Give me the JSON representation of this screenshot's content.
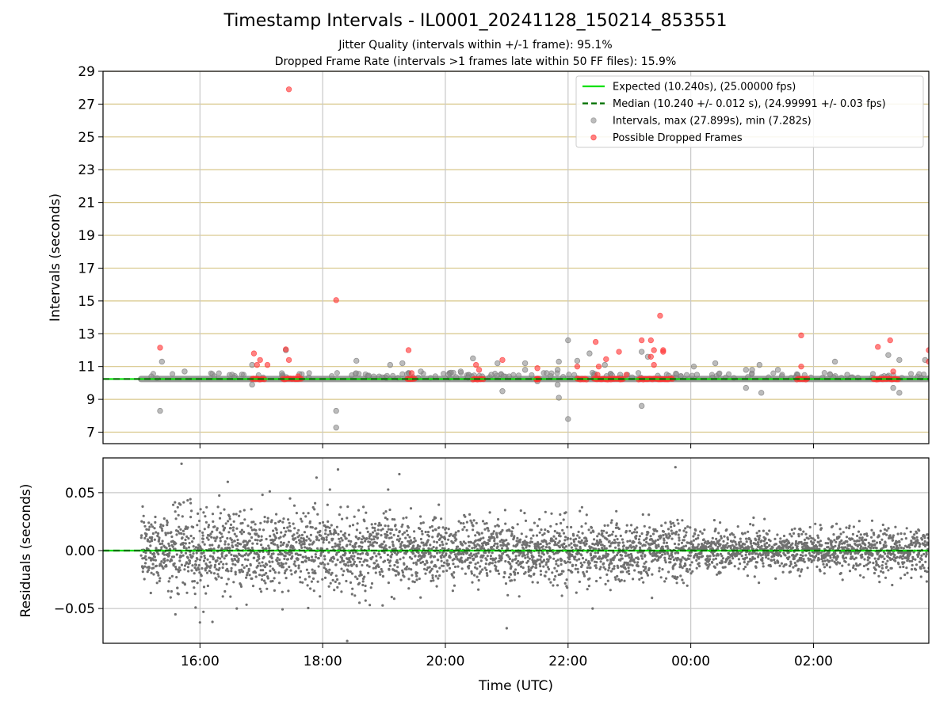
{
  "title": "Timestamp Intervals - IL0001_20241128_150214_853551",
  "subtitle_1": "Jitter Quality (intervals within +/-1 frame): 95.1%",
  "subtitle_2": "Dropped Frame Rate (intervals >1 frames late within 50 FF files): 15.9%",
  "colors": {
    "expected": "#00e000",
    "median": "#007000",
    "intervals": "#909090",
    "dropped": "#ff3030",
    "residuals": "#707070",
    "upper_grid": "#d8c78a",
    "grid": "#c8c8c8"
  },
  "chart_data": [
    {
      "type": "scatter",
      "panel": "intervals",
      "ylabel": "Intervals (seconds)",
      "ylim": [
        6.3,
        29
      ],
      "yticks": [
        7,
        9,
        11,
        13,
        15,
        17,
        19,
        21,
        23,
        25,
        27,
        29
      ],
      "xlim": [
        14.42,
        27.88
      ],
      "xticks": [
        16,
        18,
        20,
        22,
        24,
        26
      ],
      "xtick_labels": [
        "16:00",
        "18:00",
        "20:00",
        "22:00",
        "00:00",
        "02:00"
      ],
      "x_unit": "hours UTC (values above 24 are after midnight)",
      "x_range": [
        15.04,
        27.88
      ],
      "grid": true,
      "legend": {
        "position": "top-right",
        "entries": [
          {
            "label": "Expected (10.240s), (25.00000 fps)",
            "style": "solid-line",
            "color_key": "expected"
          },
          {
            "label": "Median (10.240 +/- 0.012 s), (24.99991 +/- 0.03 fps)",
            "style": "dashed-line",
            "color_key": "median"
          },
          {
            "label": "Intervals, max (27.899s), min (7.282s)",
            "style": "marker",
            "color_key": "intervals"
          },
          {
            "label": "Possible Dropped Frames",
            "style": "marker",
            "color_key": "dropped"
          }
        ]
      },
      "expected_value": 10.24,
      "median_value": 10.24,
      "intervals_points": [
        [
          15.35,
          8.3
        ],
        [
          15.38,
          11.3
        ],
        [
          15.75,
          10.7
        ],
        [
          16.85,
          9.9
        ],
        [
          16.85,
          11.1
        ],
        [
          17.4,
          12.0
        ],
        [
          18.22,
          8.3
        ],
        [
          18.22,
          7.28
        ],
        [
          18.55,
          11.35
        ],
        [
          18.75,
          10.45
        ],
        [
          19.1,
          11.1
        ],
        [
          19.3,
          11.2
        ],
        [
          19.6,
          10.7
        ],
        [
          20.05,
          10.5
        ],
        [
          20.25,
          10.7
        ],
        [
          20.45,
          11.5
        ],
        [
          20.6,
          10.4
        ],
        [
          20.75,
          10.5
        ],
        [
          20.85,
          11.2
        ],
        [
          20.93,
          9.5
        ],
        [
          21.3,
          11.2
        ],
        [
          21.3,
          10.8
        ],
        [
          21.5,
          10.1
        ],
        [
          21.65,
          10.6
        ],
        [
          21.83,
          9.9
        ],
        [
          21.83,
          10.8
        ],
        [
          21.85,
          11.3
        ],
        [
          21.85,
          9.1
        ],
        [
          22.0,
          12.6
        ],
        [
          22.0,
          7.8
        ],
        [
          22.15,
          11.35
        ],
        [
          22.35,
          11.8
        ],
        [
          22.6,
          11.1
        ],
        [
          22.85,
          10.5
        ],
        [
          23.2,
          11.9
        ],
        [
          23.2,
          8.6
        ],
        [
          23.3,
          11.6
        ],
        [
          24.05,
          11.0
        ],
        [
          24.1,
          10.5
        ],
        [
          24.4,
          11.2
        ],
        [
          24.9,
          10.8
        ],
        [
          24.9,
          9.7
        ],
        [
          25.0,
          10.8
        ],
        [
          25.12,
          11.1
        ],
        [
          25.15,
          9.4
        ],
        [
          25.42,
          10.8
        ],
        [
          26.35,
          11.3
        ],
        [
          26.55,
          10.5
        ],
        [
          27.22,
          11.7
        ],
        [
          27.3,
          9.7
        ],
        [
          27.4,
          9.4
        ],
        [
          27.4,
          11.4
        ],
        [
          27.82,
          11.4
        ]
      ],
      "dropped_points": [
        [
          15.35,
          12.15
        ],
        [
          16.88,
          11.8
        ],
        [
          16.93,
          11.1
        ],
        [
          16.98,
          11.4
        ],
        [
          17.1,
          11.1
        ],
        [
          17.4,
          12.05
        ],
        [
          17.45,
          11.4
        ],
        [
          17.45,
          27.899
        ],
        [
          17.6,
          10.4
        ],
        [
          18.22,
          15.05
        ],
        [
          19.4,
          12.0
        ],
        [
          19.45,
          10.6
        ],
        [
          20.5,
          11.1
        ],
        [
          20.55,
          10.8
        ],
        [
          20.93,
          11.4
        ],
        [
          21.5,
          10.9
        ],
        [
          22.15,
          11.0
        ],
        [
          22.45,
          12.5
        ],
        [
          22.48,
          10.5
        ],
        [
          22.5,
          11.0
        ],
        [
          22.62,
          11.45
        ],
        [
          22.83,
          11.9
        ],
        [
          22.95,
          10.5
        ],
        [
          23.2,
          12.6
        ],
        [
          23.35,
          12.6
        ],
        [
          23.35,
          11.6
        ],
        [
          23.4,
          12.0
        ],
        [
          23.4,
          11.1
        ],
        [
          23.5,
          14.1
        ],
        [
          23.55,
          12.0
        ],
        [
          23.55,
          11.9
        ],
        [
          25.8,
          12.9
        ],
        [
          25.8,
          11.0
        ],
        [
          27.05,
          12.2
        ],
        [
          27.25,
          12.6
        ],
        [
          27.3,
          10.7
        ],
        [
          27.88,
          12.0
        ],
        [
          27.88,
          11.3
        ]
      ],
      "dropped_base_runs": [
        [
          16.85,
          17.05
        ],
        [
          17.35,
          17.65
        ],
        [
          19.38,
          19.5
        ],
        [
          20.45,
          20.62
        ],
        [
          21.48,
          21.52
        ],
        [
          22.15,
          22.3
        ],
        [
          22.42,
          22.9
        ],
        [
          23.15,
          23.7
        ],
        [
          25.73,
          25.9
        ],
        [
          26.98,
          27.38
        ]
      ],
      "dropped_base_value": 10.24
    },
    {
      "type": "scatter",
      "panel": "residuals",
      "ylabel": "Residuals (seconds)",
      "xlabel": "Time (UTC)",
      "ylim": [
        -0.08,
        0.08
      ],
      "yticks": [
        -0.05,
        0.0,
        0.05
      ],
      "ytick_labels": [
        "−0.05",
        "0.00",
        "0.05"
      ],
      "xlim": [
        14.42,
        27.88
      ],
      "xticks": [
        16,
        18,
        20,
        22,
        24,
        26
      ],
      "xtick_labels": [
        "16:00",
        "18:00",
        "20:00",
        "22:00",
        "00:00",
        "02:00"
      ],
      "grid": true,
      "zero_line": 0.0,
      "residual_spread": [
        {
          "x_start": 15.04,
          "x_end": 20.0,
          "sd": 0.017
        },
        {
          "x_start": 20.0,
          "x_end": 24.0,
          "sd": 0.013
        },
        {
          "x_start": 24.0,
          "x_end": 27.88,
          "sd": 0.009
        }
      ],
      "residual_count": 4000,
      "outliers": [
        [
          15.7,
          0.075
        ],
        [
          16.0,
          -0.062
        ],
        [
          15.6,
          -0.055
        ],
        [
          16.6,
          -0.05
        ],
        [
          17.9,
          0.063
        ],
        [
          18.25,
          0.07
        ],
        [
          18.4,
          -0.078
        ],
        [
          18.6,
          -0.045
        ],
        [
          19.25,
          0.066
        ],
        [
          21.0,
          -0.067
        ],
        [
          23.75,
          0.072
        ],
        [
          22.4,
          -0.05
        ]
      ]
    }
  ]
}
